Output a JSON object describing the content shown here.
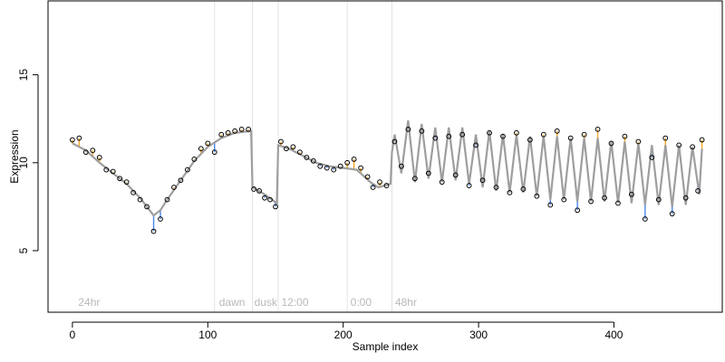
{
  "chart_data": {
    "type": "scatter",
    "title": "",
    "xlabel": "Sample index",
    "ylabel": "Expression",
    "xlim": [
      -18,
      480
    ],
    "ylim": [
      1.5,
      19.2
    ],
    "x_ticks": [
      0,
      100,
      200,
      300,
      400
    ],
    "y_ticks": [
      5,
      10,
      15
    ],
    "grid": false,
    "legend": "none",
    "colors": {
      "fit": "#9e9e9e",
      "residual_above": "#f5a623",
      "residual_below": "#4a86e8",
      "vline": "#e2e2e2",
      "region_label": "#b8b8b8"
    },
    "vertical_lines": [
      105,
      133,
      152,
      203,
      236
    ],
    "region_labels": [
      {
        "x": 3,
        "text": "24hr"
      },
      {
        "x": 107,
        "text": "dawn"
      },
      {
        "x": 133,
        "text": "dusk"
      },
      {
        "x": 153,
        "text": "12:00"
      },
      {
        "x": 204,
        "text": "0:00"
      },
      {
        "x": 237,
        "text": "48hr"
      }
    ],
    "observed": [
      {
        "x": 0,
        "y": 11.3
      },
      {
        "x": 5,
        "y": 11.4
      },
      {
        "x": 10,
        "y": 10.6
      },
      {
        "x": 15,
        "y": 10.7
      },
      {
        "x": 20,
        "y": 10.3
      },
      {
        "x": 25,
        "y": 9.6
      },
      {
        "x": 30,
        "y": 9.5
      },
      {
        "x": 35,
        "y": 9.1
      },
      {
        "x": 40,
        "y": 8.9
      },
      {
        "x": 45,
        "y": 8.3
      },
      {
        "x": 50,
        "y": 7.9
      },
      {
        "x": 55,
        "y": 7.5
      },
      {
        "x": 60,
        "y": 6.1
      },
      {
        "x": 65,
        "y": 6.8
      },
      {
        "x": 70,
        "y": 7.9
      },
      {
        "x": 75,
        "y": 8.6
      },
      {
        "x": 80,
        "y": 9.0
      },
      {
        "x": 85,
        "y": 9.6
      },
      {
        "x": 90,
        "y": 10.2
      },
      {
        "x": 95,
        "y": 10.8
      },
      {
        "x": 100,
        "y": 11.1
      },
      {
        "x": 105,
        "y": 10.6
      },
      {
        "x": 110,
        "y": 11.6
      },
      {
        "x": 115,
        "y": 11.7
      },
      {
        "x": 120,
        "y": 11.8
      },
      {
        "x": 125,
        "y": 11.9
      },
      {
        "x": 130,
        "y": 11.9
      },
      {
        "x": 134,
        "y": 8.5
      },
      {
        "x": 138,
        "y": 8.4
      },
      {
        "x": 142,
        "y": 8.0
      },
      {
        "x": 146,
        "y": 7.9
      },
      {
        "x": 150,
        "y": 7.5
      },
      {
        "x": 154,
        "y": 11.2
      },
      {
        "x": 158,
        "y": 10.8
      },
      {
        "x": 163,
        "y": 10.9
      },
      {
        "x": 168,
        "y": 10.6
      },
      {
        "x": 173,
        "y": 10.3
      },
      {
        "x": 178,
        "y": 10.1
      },
      {
        "x": 183,
        "y": 9.8
      },
      {
        "x": 188,
        "y": 9.7
      },
      {
        "x": 193,
        "y": 9.6
      },
      {
        "x": 198,
        "y": 9.8
      },
      {
        "x": 203,
        "y": 10.0
      },
      {
        "x": 208,
        "y": 10.2
      },
      {
        "x": 213,
        "y": 9.7
      },
      {
        "x": 218,
        "y": 9.2
      },
      {
        "x": 222,
        "y": 8.6
      },
      {
        "x": 227,
        "y": 8.9
      },
      {
        "x": 232,
        "y": 8.7
      },
      {
        "x": 238,
        "y": 11.2
      },
      {
        "x": 243,
        "y": 9.8
      },
      {
        "x": 248,
        "y": 11.9
      },
      {
        "x": 253,
        "y": 9.1
      },
      {
        "x": 258,
        "y": 11.8
      },
      {
        "x": 263,
        "y": 9.4
      },
      {
        "x": 268,
        "y": 11.4
      },
      {
        "x": 273,
        "y": 8.9
      },
      {
        "x": 278,
        "y": 11.5
      },
      {
        "x": 283,
        "y": 9.3
      },
      {
        "x": 288,
        "y": 11.6
      },
      {
        "x": 293,
        "y": 8.7
      },
      {
        "x": 298,
        "y": 11.0
      },
      {
        "x": 303,
        "y": 9.0
      },
      {
        "x": 308,
        "y": 11.7
      },
      {
        "x": 313,
        "y": 8.6
      },
      {
        "x": 318,
        "y": 11.5
      },
      {
        "x": 323,
        "y": 8.3
      },
      {
        "x": 328,
        "y": 11.7
      },
      {
        "x": 333,
        "y": 8.5
      },
      {
        "x": 338,
        "y": 11.3
      },
      {
        "x": 343,
        "y": 8.1
      },
      {
        "x": 348,
        "y": 11.6
      },
      {
        "x": 353,
        "y": 7.6
      },
      {
        "x": 358,
        "y": 11.8
      },
      {
        "x": 363,
        "y": 7.9
      },
      {
        "x": 368,
        "y": 11.4
      },
      {
        "x": 373,
        "y": 7.3
      },
      {
        "x": 378,
        "y": 11.6
      },
      {
        "x": 383,
        "y": 7.8
      },
      {
        "x": 388,
        "y": 11.9
      },
      {
        "x": 393,
        "y": 8.0
      },
      {
        "x": 398,
        "y": 11.1
      },
      {
        "x": 403,
        "y": 7.7
      },
      {
        "x": 408,
        "y": 11.5
      },
      {
        "x": 413,
        "y": 8.2
      },
      {
        "x": 418,
        "y": 11.2
      },
      {
        "x": 423,
        "y": 6.8
      },
      {
        "x": 428,
        "y": 10.3
      },
      {
        "x": 433,
        "y": 7.9
      },
      {
        "x": 438,
        "y": 11.4
      },
      {
        "x": 443,
        "y": 7.1
      },
      {
        "x": 448,
        "y": 11.0
      },
      {
        "x": 453,
        "y": 8.0
      },
      {
        "x": 458,
        "y": 10.9
      },
      {
        "x": 462,
        "y": 8.4
      },
      {
        "x": 465,
        "y": 11.3
      }
    ],
    "fit": [
      {
        "x": 0,
        "y": 11.1
      },
      {
        "x": 10,
        "y": 10.7
      },
      {
        "x": 20,
        "y": 10.0
      },
      {
        "x": 30,
        "y": 9.4
      },
      {
        "x": 40,
        "y": 8.8
      },
      {
        "x": 50,
        "y": 8.0
      },
      {
        "x": 55,
        "y": 7.5
      },
      {
        "x": 60,
        "y": 7.0
      },
      {
        "x": 65,
        "y": 7.3
      },
      {
        "x": 70,
        "y": 7.9
      },
      {
        "x": 80,
        "y": 9.0
      },
      {
        "x": 90,
        "y": 10.1
      },
      {
        "x": 100,
        "y": 10.9
      },
      {
        "x": 110,
        "y": 11.4
      },
      {
        "x": 120,
        "y": 11.7
      },
      {
        "x": 132,
        "y": 11.8
      },
      {
        "x": 133,
        "y": 8.6
      },
      {
        "x": 142,
        "y": 8.2
      },
      {
        "x": 151,
        "y": 7.7
      },
      {
        "x": 152,
        "y": 11.0
      },
      {
        "x": 160,
        "y": 10.8
      },
      {
        "x": 170,
        "y": 10.4
      },
      {
        "x": 180,
        "y": 10.0
      },
      {
        "x": 190,
        "y": 9.8
      },
      {
        "x": 200,
        "y": 9.7
      },
      {
        "x": 210,
        "y": 9.6
      },
      {
        "x": 220,
        "y": 8.9
      },
      {
        "x": 226,
        "y": 8.6
      },
      {
        "x": 235,
        "y": 8.8
      },
      {
        "x": 236,
        "y": 10.6
      },
      {
        "x": 238,
        "y": 11.6
      },
      {
        "x": 243,
        "y": 9.4
      },
      {
        "x": 248,
        "y": 12.4
      },
      {
        "x": 253,
        "y": 8.9
      },
      {
        "x": 258,
        "y": 12.2
      },
      {
        "x": 263,
        "y": 9.1
      },
      {
        "x": 268,
        "y": 12.0
      },
      {
        "x": 273,
        "y": 8.9
      },
      {
        "x": 278,
        "y": 12.0
      },
      {
        "x": 283,
        "y": 9.0
      },
      {
        "x": 288,
        "y": 12.0
      },
      {
        "x": 293,
        "y": 8.8
      },
      {
        "x": 298,
        "y": 11.6
      },
      {
        "x": 303,
        "y": 8.6
      },
      {
        "x": 308,
        "y": 11.8
      },
      {
        "x": 313,
        "y": 8.4
      },
      {
        "x": 318,
        "y": 11.6
      },
      {
        "x": 323,
        "y": 8.3
      },
      {
        "x": 328,
        "y": 11.6
      },
      {
        "x": 333,
        "y": 8.3
      },
      {
        "x": 338,
        "y": 11.5
      },
      {
        "x": 343,
        "y": 8.1
      },
      {
        "x": 348,
        "y": 11.5
      },
      {
        "x": 353,
        "y": 7.9
      },
      {
        "x": 358,
        "y": 11.5
      },
      {
        "x": 363,
        "y": 7.9
      },
      {
        "x": 368,
        "y": 11.4
      },
      {
        "x": 373,
        "y": 7.8
      },
      {
        "x": 378,
        "y": 11.4
      },
      {
        "x": 383,
        "y": 7.8
      },
      {
        "x": 388,
        "y": 11.4
      },
      {
        "x": 393,
        "y": 7.8
      },
      {
        "x": 398,
        "y": 11.2
      },
      {
        "x": 403,
        "y": 7.7
      },
      {
        "x": 408,
        "y": 11.2
      },
      {
        "x": 413,
        "y": 7.7
      },
      {
        "x": 418,
        "y": 11.1
      },
      {
        "x": 423,
        "y": 7.6
      },
      {
        "x": 428,
        "y": 11.0
      },
      {
        "x": 433,
        "y": 7.6
      },
      {
        "x": 438,
        "y": 11.0
      },
      {
        "x": 443,
        "y": 7.5
      },
      {
        "x": 448,
        "y": 11.0
      },
      {
        "x": 453,
        "y": 7.6
      },
      {
        "x": 458,
        "y": 10.9
      },
      {
        "x": 463,
        "y": 8.2
      },
      {
        "x": 465,
        "y": 10.8
      }
    ]
  }
}
